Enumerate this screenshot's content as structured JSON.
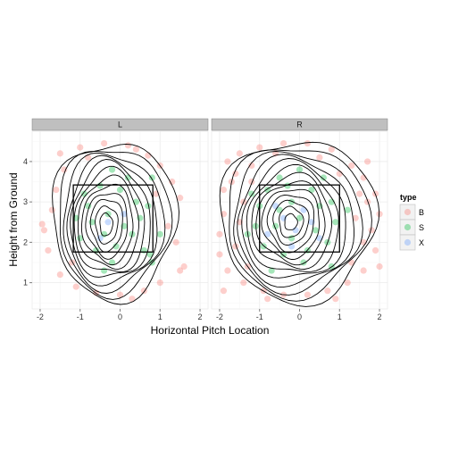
{
  "chart_data": {
    "type": "scatter",
    "xlabel": "Horizontal Pitch Location",
    "ylabel": "Height from Ground",
    "xlim": [
      -2.2,
      2.2
    ],
    "ylim": [
      0.35,
      4.75
    ],
    "x_ticks": [
      -2,
      -1,
      0,
      1,
      2
    ],
    "y_ticks": [
      1,
      2,
      3,
      4
    ],
    "grid": true,
    "legend": {
      "title": "type",
      "placement": "right",
      "entries": [
        {
          "label": "B",
          "color": "#F8766D"
        },
        {
          "label": "S",
          "color": "#00BA38"
        },
        {
          "label": "X",
          "color": "#619CFF"
        }
      ]
    },
    "strike_zone": {
      "x": [
        -1.17,
        0.82
      ],
      "y": [
        1.76,
        3.42
      ]
    },
    "panels": [
      {
        "label": "L",
        "strike_zone": {
          "x": [
            -1.17,
            0.82
          ],
          "y": [
            1.76,
            3.42
          ]
        },
        "density_center": [
          -0.3,
          2.45
        ],
        "points": {
          "B": [
            [
              -1.5,
              4.2
            ],
            [
              -1.0,
              4.35
            ],
            [
              -0.4,
              4.45
            ],
            [
              0.2,
              4.4
            ],
            [
              0.7,
              4.15
            ],
            [
              1.0,
              3.9
            ],
            [
              1.3,
              3.5
            ],
            [
              1.5,
              3.1
            ],
            [
              1.2,
              2.4
            ],
            [
              1.6,
              1.4
            ],
            [
              1.5,
              1.3
            ],
            [
              1.0,
              1.0
            ],
            [
              0.6,
              0.8
            ],
            [
              0.0,
              0.7
            ],
            [
              -0.6,
              0.75
            ],
            [
              -1.1,
              0.9
            ],
            [
              -1.5,
              1.2
            ],
            [
              -1.8,
              1.8
            ],
            [
              -1.9,
              2.3
            ],
            [
              -1.7,
              2.8
            ],
            [
              -1.6,
              3.3
            ],
            [
              -1.4,
              3.8
            ],
            [
              -0.8,
              4.1
            ],
            [
              0.4,
              4.3
            ],
            [
              1.4,
              2.0
            ],
            [
              -1.2,
              1.5
            ],
            [
              0.9,
              3.2
            ],
            [
              -1.95,
              2.45
            ],
            [
              0.3,
              0.6
            ]
          ],
          "S": [
            [
              -0.9,
              3.2
            ],
            [
              -0.5,
              3.4
            ],
            [
              0.0,
              3.3
            ],
            [
              0.4,
              3.0
            ],
            [
              0.5,
              2.6
            ],
            [
              0.3,
              2.2
            ],
            [
              -0.1,
              1.9
            ],
            [
              -0.6,
              1.8
            ],
            [
              -1.0,
              2.1
            ],
            [
              -1.1,
              2.6
            ],
            [
              -0.8,
              2.9
            ],
            [
              -0.3,
              2.7
            ],
            [
              0.1,
              2.4
            ],
            [
              -0.4,
              2.2
            ],
            [
              -0.7,
              2.5
            ],
            [
              0.7,
              2.9
            ],
            [
              0.6,
              1.8
            ],
            [
              -0.2,
              1.5
            ],
            [
              0.8,
              3.6
            ],
            [
              -0.2,
              3.8
            ],
            [
              0.8,
              1.5
            ],
            [
              -0.4,
              1.3
            ],
            [
              0.2,
              3.6
            ],
            [
              1.0,
              2.2
            ],
            [
              0.75,
              1.7
            ]
          ],
          "X": [
            [
              -0.3,
              2.5
            ],
            [
              0.1,
              2.7
            ],
            [
              -0.5,
              2.1
            ]
          ]
        },
        "contours": [
          {
            "sx": 1.55,
            "sy": 1.95,
            "cx": -0.15,
            "cy": 2.55
          },
          {
            "sx": 1.4,
            "sy": 1.82,
            "cx": -0.18,
            "cy": 2.55
          },
          {
            "sx": 1.26,
            "sy": 1.68,
            "cx": -0.2,
            "cy": 2.52
          },
          {
            "sx": 1.12,
            "sy": 1.55,
            "cx": -0.22,
            "cy": 2.5
          },
          {
            "sx": 1.0,
            "sy": 1.42,
            "cx": -0.24,
            "cy": 2.5
          },
          {
            "sx": 0.88,
            "sy": 1.28,
            "cx": -0.26,
            "cy": 2.48
          },
          {
            "sx": 0.76,
            "sy": 1.12,
            "cx": -0.28,
            "cy": 2.47
          },
          {
            "sx": 0.64,
            "sy": 0.96,
            "cx": -0.3,
            "cy": 2.46
          },
          {
            "sx": 0.52,
            "sy": 0.8,
            "cx": -0.32,
            "cy": 2.45
          },
          {
            "sx": 0.4,
            "sy": 0.64,
            "cx": -0.33,
            "cy": 2.45
          },
          {
            "sx": 0.28,
            "sy": 0.46,
            "cx": -0.34,
            "cy": 2.44
          },
          {
            "sx": 0.16,
            "sy": 0.28,
            "cx": -0.35,
            "cy": 2.44
          }
        ]
      },
      {
        "label": "R",
        "strike_zone": {
          "x": [
            -1.0,
            1.0
          ],
          "y": [
            1.76,
            3.42
          ]
        },
        "density_center": [
          -0.2,
          2.5
        ],
        "points": {
          "B": [
            [
              -1.8,
              4.0
            ],
            [
              -1.5,
              4.2
            ],
            [
              -1.0,
              4.35
            ],
            [
              -0.4,
              4.45
            ],
            [
              0.2,
              4.45
            ],
            [
              0.8,
              4.3
            ],
            [
              1.3,
              3.9
            ],
            [
              1.6,
              3.6
            ],
            [
              1.9,
              3.2
            ],
            [
              2.0,
              2.7
            ],
            [
              1.8,
              2.3
            ],
            [
              1.9,
              1.8
            ],
            [
              1.6,
              1.3
            ],
            [
              1.2,
              1.0
            ],
            [
              0.7,
              0.8
            ],
            [
              0.2,
              0.7
            ],
            [
              -0.4,
              0.7
            ],
            [
              -0.9,
              0.8
            ],
            [
              -1.4,
              1.0
            ],
            [
              -1.8,
              1.3
            ],
            [
              -2.0,
              1.7
            ],
            [
              -2.0,
              2.2
            ],
            [
              -1.9,
              2.7
            ],
            [
              -1.9,
              3.3
            ],
            [
              -1.6,
              3.7
            ],
            [
              -1.2,
              3.9
            ],
            [
              -0.6,
              4.2
            ],
            [
              0.5,
              4.1
            ],
            [
              1.0,
              3.7
            ],
            [
              1.5,
              3.2
            ],
            [
              1.4,
              2.6
            ],
            [
              1.6,
              2.0
            ],
            [
              1.3,
              1.5
            ],
            [
              -1.3,
              1.4
            ],
            [
              -1.6,
              1.9
            ],
            [
              -1.5,
              2.5
            ],
            [
              -1.4,
              3.0
            ],
            [
              -1.7,
              3.5
            ],
            [
              -0.8,
              0.6
            ],
            [
              0.9,
              0.6
            ],
            [
              -1.9,
              0.8
            ],
            [
              2.0,
              1.4
            ],
            [
              1.7,
              4.0
            ],
            [
              -1.2,
              3.5
            ],
            [
              1.7,
              3.0
            ]
          ],
          "S": [
            [
              -0.8,
              3.3
            ],
            [
              -0.3,
              3.4
            ],
            [
              0.3,
              3.3
            ],
            [
              0.8,
              3.0
            ],
            [
              0.9,
              2.5
            ],
            [
              0.7,
              2.0
            ],
            [
              0.2,
              1.8
            ],
            [
              -0.4,
              1.7
            ],
            [
              -0.9,
              1.9
            ],
            [
              -1.1,
              2.4
            ],
            [
              -1.0,
              2.9
            ],
            [
              -0.5,
              2.8
            ],
            [
              0.0,
              2.6
            ],
            [
              0.4,
              2.3
            ],
            [
              -0.2,
              2.1
            ],
            [
              -0.6,
              2.4
            ],
            [
              0.5,
              2.9
            ],
            [
              -0.2,
              3.0
            ],
            [
              0.1,
              1.5
            ],
            [
              -0.7,
              1.3
            ],
            [
              0.8,
              1.4
            ],
            [
              1.2,
              2.8
            ],
            [
              -1.2,
              3.2
            ],
            [
              0.0,
              3.8
            ],
            [
              -0.5,
              3.6
            ],
            [
              0.6,
              3.6
            ],
            [
              -1.3,
              2.2
            ]
          ],
          "X": [
            [
              -0.4,
              2.6
            ],
            [
              0.1,
              2.8
            ],
            [
              -0.1,
              2.3
            ],
            [
              0.3,
              2.5
            ],
            [
              -0.6,
              2.9
            ],
            [
              -0.2,
              1.9
            ],
            [
              0.5,
              2.1
            ],
            [
              -0.8,
              2.2
            ]
          ]
        },
        "contours": [
          {
            "sx": 1.95,
            "sy": 2.0,
            "cx": -0.05,
            "cy": 2.55
          },
          {
            "sx": 1.78,
            "sy": 1.86,
            "cx": -0.08,
            "cy": 2.55
          },
          {
            "sx": 1.6,
            "sy": 1.72,
            "cx": -0.1,
            "cy": 2.52
          },
          {
            "sx": 1.45,
            "sy": 1.58,
            "cx": -0.12,
            "cy": 2.5
          },
          {
            "sx": 1.3,
            "sy": 1.44,
            "cx": -0.14,
            "cy": 2.5
          },
          {
            "sx": 1.15,
            "sy": 1.3,
            "cx": -0.16,
            "cy": 2.5
          },
          {
            "sx": 1.0,
            "sy": 1.15,
            "cx": -0.18,
            "cy": 2.5
          },
          {
            "sx": 0.86,
            "sy": 1.0,
            "cx": -0.2,
            "cy": 2.5
          },
          {
            "sx": 0.72,
            "sy": 0.85,
            "cx": -0.2,
            "cy": 2.5
          },
          {
            "sx": 0.58,
            "sy": 0.7,
            "cx": -0.21,
            "cy": 2.5
          },
          {
            "sx": 0.44,
            "sy": 0.54,
            "cx": -0.22,
            "cy": 2.5
          },
          {
            "sx": 0.3,
            "sy": 0.38,
            "cx": -0.22,
            "cy": 2.5
          },
          {
            "sx": 0.16,
            "sy": 0.2,
            "cx": -0.22,
            "cy": 2.5
          }
        ]
      }
    ]
  }
}
